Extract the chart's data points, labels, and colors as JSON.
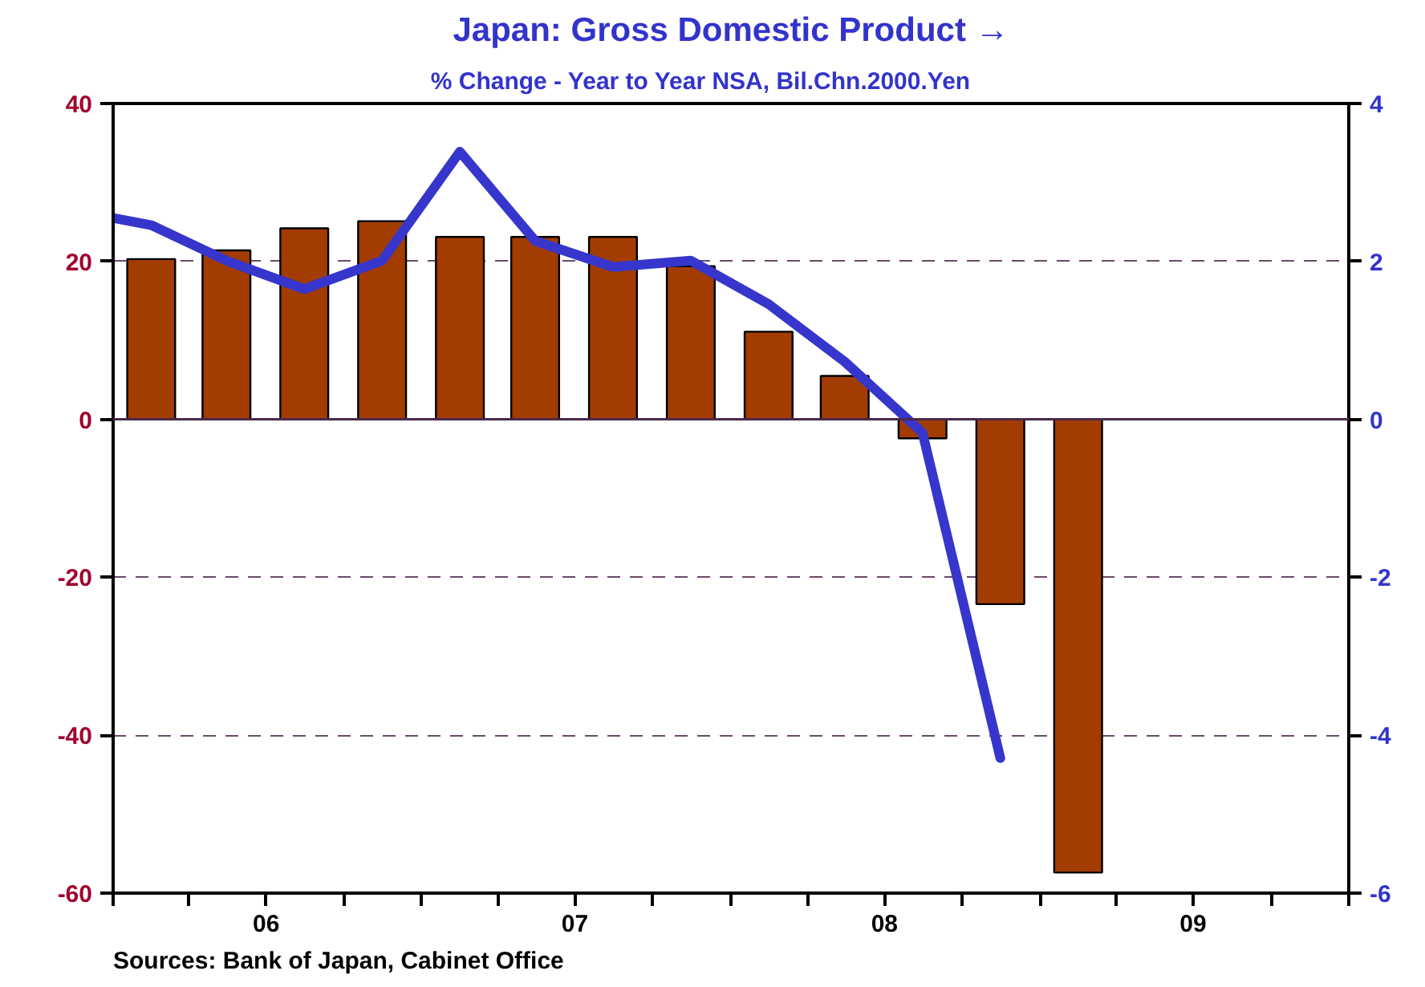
{
  "chart_data": {
    "type": "bar",
    "title": "Japan: Gross Domestic Product →",
    "subtitle": "% Change - Year to Year          NSA, Bil.Chn.2000.Yen",
    "x": [
      "2006-02-15",
      "2006-05-15",
      "2006-08-15",
      "2006-11-15",
      "2007-02-15",
      "2007-05-15",
      "2007-08-15",
      "2007-11-15",
      "2008-02-15",
      "2008-05-15",
      "2008-08-15",
      "2008-11-15",
      "2009-02-15"
    ],
    "series": [
      {
        "color": "#a33c00",
        "values": [
          20.3,
          21.4,
          24.2,
          25.1,
          23.1,
          23.1,
          23.1,
          19.4,
          11.1,
          5.5,
          -2.4,
          -23.4,
          -57.4
        ]
      },
      {
        "type": "line",
        "axis": "y2",
        "color": "#3636cc",
        "x": [
          "2006-01-01",
          "2006-02-15",
          "2006-05-15",
          "2006-08-15",
          "2006-11-15",
          "2007-02-15",
          "2007-05-15",
          "2007-08-15",
          "2007-11-15",
          "2008-02-15",
          "2008-05-15",
          "2008-08-15",
          "2008-11-15"
        ],
        "values": [
          2.55,
          2.46,
          2.01,
          1.65,
          2.01,
          3.39,
          2.26,
          1.93,
          2.01,
          1.46,
          0.73,
          -0.17,
          -4.29
        ]
      }
    ],
    "xlim": [
      "2006-01-01",
      "2010-01-01"
    ],
    "xticks": [
      {
        "value": "2006-01-01",
        "label": null
      },
      {
        "value": "2006-04-01",
        "label": null
      },
      {
        "value": "2006-07-01",
        "label": "06"
      },
      {
        "value": "2006-10-01",
        "label": null
      },
      {
        "value": "2007-01-01",
        "label": null
      },
      {
        "value": "2007-04-01",
        "label": null
      },
      {
        "value": "2007-07-01",
        "label": "07"
      },
      {
        "value": "2007-10-01",
        "label": null
      },
      {
        "value": "2008-01-01",
        "label": null
      },
      {
        "value": "2008-04-01",
        "label": null
      },
      {
        "value": "2008-07-01",
        "label": "08"
      },
      {
        "value": "2008-10-01",
        "label": null
      },
      {
        "value": "2009-01-01",
        "label": null
      },
      {
        "value": "2009-04-01",
        "label": null
      },
      {
        "value": "2009-07-01",
        "label": "09"
      },
      {
        "value": "2009-10-01",
        "label": null
      },
      {
        "value": "2010-01-01",
        "label": null
      }
    ],
    "ylim": [
      -60,
      40
    ],
    "yticks": [
      -60,
      -40,
      -20,
      0,
      20,
      40
    ],
    "y2lim": [
      -6,
      4
    ],
    "y2ticks": [
      -6,
      -4,
      -2,
      0,
      2,
      4
    ],
    "grid": "y",
    "ref_lines": [
      {
        "axis": "y",
        "value": 0,
        "label": null,
        "color": "#4a2a4a",
        "line_style": "solid"
      }
    ],
    "annotations": [
      "Sources:  Bank of Japan, Cabinet Office"
    ]
  }
}
